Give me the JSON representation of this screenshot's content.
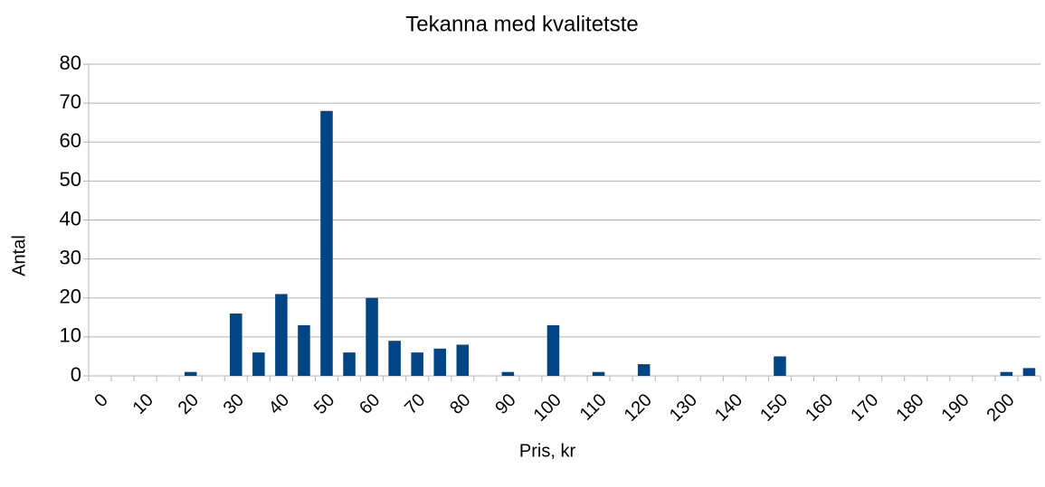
{
  "chart_data": {
    "type": "bar",
    "title": "Tekanna med kvalitetste",
    "x_label": "Pris, kr",
    "y_label": "Antal",
    "categories": [
      "0",
      null,
      "10",
      null,
      "20",
      null,
      "30",
      null,
      "40",
      null,
      "50",
      null,
      "60",
      null,
      "70",
      null,
      "80",
      null,
      "90",
      null,
      "100",
      null,
      "110",
      null,
      "120",
      null,
      "130",
      null,
      "140",
      null,
      "150",
      null,
      "160",
      null,
      "170",
      null,
      "180",
      null,
      "190",
      null,
      "200",
      null
    ],
    "values": [
      0,
      0,
      0,
      0,
      1,
      0,
      16,
      6,
      21,
      13,
      68,
      6,
      20,
      9,
      6,
      7,
      8,
      0,
      1,
      0,
      13,
      0,
      1,
      0,
      3,
      0,
      0,
      0,
      0,
      0,
      5,
      0,
      0,
      0,
      0,
      0,
      0,
      0,
      0,
      0,
      1,
      2
    ],
    "color": "#004586",
    "ylim": [
      0,
      80
    ],
    "yticks": [
      0,
      10,
      20,
      30,
      40,
      50,
      60,
      70,
      80
    ],
    "grid": true
  }
}
